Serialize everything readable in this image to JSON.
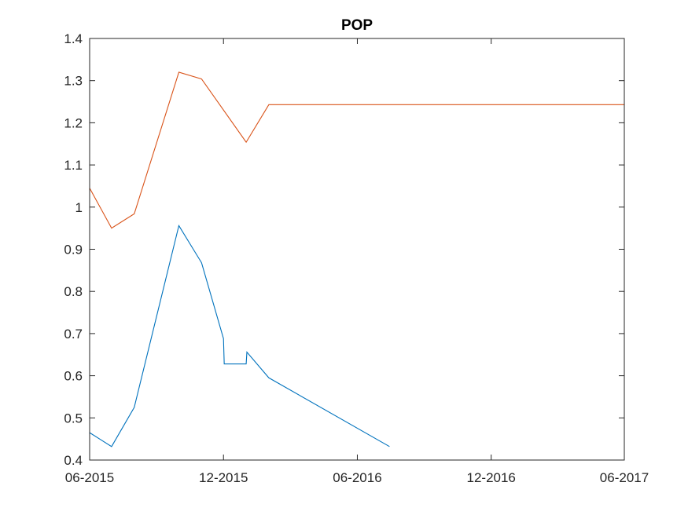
{
  "chart_data": {
    "type": "line",
    "title": "POP",
    "xlabel": "",
    "ylabel": "",
    "x_ticks": [
      "06-2015",
      "12-2015",
      "06-2016",
      "12-2016",
      "06-2017"
    ],
    "y_ticks": [
      "0.4",
      "0.5",
      "0.6",
      "0.7",
      "0.8",
      "0.9",
      "1",
      "1.1",
      "1.2",
      "1.3",
      "1.4"
    ],
    "xlim": [
      "2015-06-01",
      "2017-06-01"
    ],
    "ylim": [
      0.4,
      1.4
    ],
    "grid": false,
    "series": [
      {
        "color": "#0072BD",
        "points": [
          [
            "2015-06-01",
            0.465
          ],
          [
            "2015-07-01",
            0.432
          ],
          [
            "2015-08-01",
            0.525
          ],
          [
            "2015-10-01",
            0.956
          ],
          [
            "2015-11-01",
            0.868
          ],
          [
            "2015-12-01",
            0.688
          ],
          [
            "2015-12-02",
            0.628
          ],
          [
            "2016-01-01",
            0.628
          ],
          [
            "2016-01-02",
            0.656
          ],
          [
            "2016-02-01",
            0.595
          ],
          [
            "2016-07-15",
            0.432
          ]
        ]
      },
      {
        "color": "#D95319",
        "points": [
          [
            "2015-06-01",
            1.045
          ],
          [
            "2015-07-01",
            0.95
          ],
          [
            "2015-08-01",
            0.984
          ],
          [
            "2015-10-01",
            1.32
          ],
          [
            "2015-11-01",
            1.304
          ],
          [
            "2016-01-01",
            1.154
          ],
          [
            "2016-02-01",
            1.243
          ],
          [
            "2017-06-01",
            1.243
          ]
        ]
      }
    ]
  }
}
